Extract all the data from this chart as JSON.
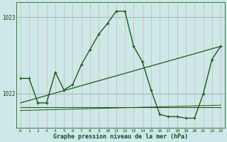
{
  "title": "Graphe pression niveau de la mer (hPa)",
  "background_color": "#cce8e8",
  "line_color": "#1a5c1a",
  "grid_color_v": "#ddb8b8",
  "grid_color_h": "#a0c0c0",
  "xlim": [
    -0.5,
    23.5
  ],
  "ylim": [
    1021.55,
    1023.2
  ],
  "yticks": [
    1022,
    1023
  ],
  "xticks": [
    0,
    1,
    2,
    3,
    4,
    5,
    6,
    7,
    8,
    9,
    10,
    11,
    12,
    13,
    14,
    15,
    16,
    17,
    18,
    19,
    20,
    21,
    22,
    23
  ],
  "series": [
    {
      "x": [
        0,
        1,
        2,
        3,
        4,
        5,
        6,
        7,
        8,
        9,
        10,
        11,
        12,
        13,
        14,
        15,
        16,
        17,
        18,
        19,
        20,
        21,
        22,
        23
      ],
      "y": [
        1022.2,
        1022.2,
        1021.88,
        1021.88,
        1022.28,
        1022.05,
        1022.12,
        1022.38,
        1022.58,
        1022.78,
        1022.92,
        1023.08,
        1023.08,
        1022.62,
        1022.42,
        1022.05,
        1021.73,
        1021.7,
        1021.7,
        1021.68,
        1021.68,
        1022.0,
        1022.45,
        1022.62
      ],
      "marker": "+",
      "lw": 1.0
    },
    {
      "x": [
        0,
        23
      ],
      "y": [
        1021.88,
        1022.62
      ],
      "marker": null,
      "lw": 0.9
    },
    {
      "x": [
        0,
        23
      ],
      "y": [
        1021.82,
        1021.82
      ],
      "marker": null,
      "lw": 0.8
    },
    {
      "x": [
        0,
        23
      ],
      "y": [
        1021.78,
        1021.85
      ],
      "marker": null,
      "lw": 0.7
    }
  ]
}
